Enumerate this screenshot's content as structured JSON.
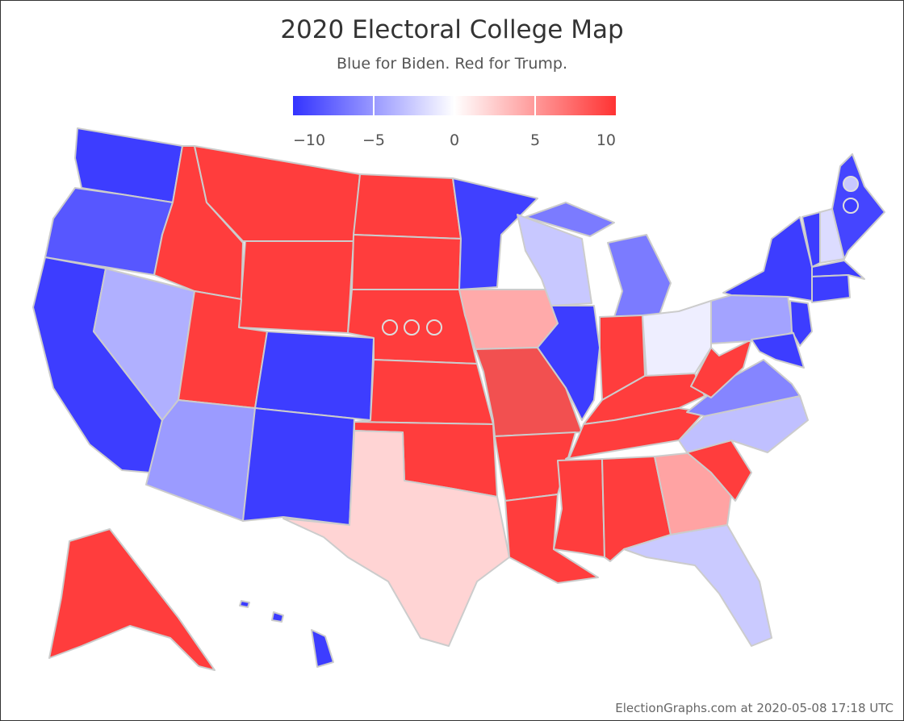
{
  "header": {
    "title": "2020 Electoral College Map",
    "subtitle": "Blue for Biden. Red for Trump."
  },
  "legend": {
    "colors": [
      "#3333ff",
      "#ffffff",
      "#ff3333"
    ],
    "range": [
      -10,
      10
    ],
    "ticks": [
      {
        "value": -10,
        "label": "−10"
      },
      {
        "value": -5,
        "label": "−5"
      },
      0,
      5,
      10
    ]
  },
  "regions": [
    {
      "color": "#3d3dff"
    },
    {
      "color": "#5757ff"
    },
    {
      "color": "#3d3dff"
    },
    {
      "color": "#b0b0ff"
    },
    {
      "color": "#ff3d3d"
    },
    {
      "color": "#ff3d3d"
    },
    {
      "color": "#ff3d3d"
    },
    {
      "color": "#ff3d3d"
    },
    {
      "color": "#3d3dff"
    },
    {
      "color": "#9b9bff"
    },
    {
      "color": "#3d3dff"
    },
    {
      "color": "#ff3d3d"
    },
    {
      "color": "#ff3d3d"
    },
    {
      "color": "#ff3d3d"
    },
    {
      "color": "#ff3d3d"
    },
    {
      "color": "#ff3d3d"
    },
    {
      "color": "#ffd4d4"
    },
    {
      "color": "#4040ff"
    },
    {
      "color": "#ffaaaa"
    },
    {
      "color": "#f25050"
    },
    {
      "color": "#ff3d3d"
    },
    {
      "color": "#ff3d3d"
    },
    {
      "color": "#c8c8ff"
    },
    {
      "color": "#3d3dff"
    },
    {
      "color": "#7b7bff"
    },
    {
      "color": "#7b7bff"
    },
    {
      "color": "#ff3d3d"
    },
    {
      "color": "#eeeeff"
    },
    {
      "color": "#ff3d3d"
    },
    {
      "color": "#ff3d3d"
    },
    {
      "color": "#ff3d3d"
    },
    {
      "color": "#ff3d3d"
    },
    {
      "color": "#ffa3a3"
    },
    {
      "color": "#cacaff"
    },
    {
      "color": "#ff3d3d"
    },
    {
      "color": "#c0c0ff"
    },
    {
      "color": "#8585ff"
    },
    {
      "color": "#ff3d3d"
    },
    {
      "color": "#a3a3ff"
    },
    {
      "color": "#3d3dff"
    },
    {
      "color": "#3d3dff"
    },
    {
      "color": "#3d3dff"
    },
    {
      "color": "#3d3dff"
    },
    {
      "color": "#dcdcff"
    },
    {
      "color": "#4545ff"
    },
    {
      "color": "#3d3dff"
    },
    {
      "color": "#3d3dff"
    },
    {
      "color": "#ff3d3d"
    },
    {
      "color": "#3d3dff"
    },
    {
      "color": "#3d3dff"
    },
    {
      "color": "#3d3dff"
    },
    {
      "color": "#ff3d3d"
    },
    {
      "color": "#ff3d3d"
    },
    {
      "color": "#ff3d3d"
    },
    {
      "color": "#c8c8ff"
    },
    {
      "color": "#3d3dff"
    }
  ],
  "footer": "ElectionGraphs.com at 2020-05-08 17:18 UTC"
}
